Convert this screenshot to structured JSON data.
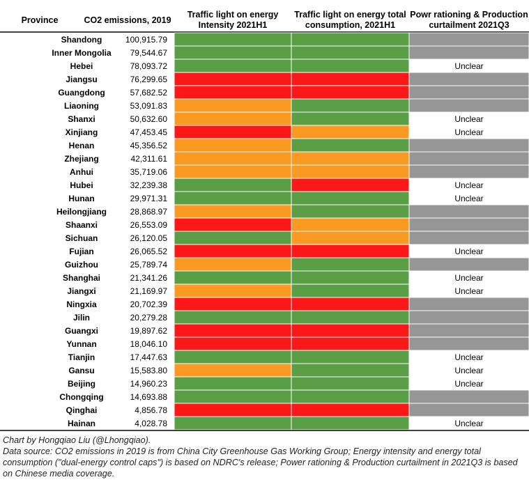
{
  "chart_data": {
    "type": "table",
    "columns": [
      "Province",
      "CO2 emissions, 2019",
      "Traffic light on energy Intensity 2021H1",
      "Traffic light on energy total consumption, 2021H1",
      "Powr rationing & Production curtailment 2021Q3"
    ],
    "header_lines": [
      [
        "Province"
      ],
      [
        "CO2 emissions, 2019"
      ],
      [
        "Traffic light on energy",
        "Intensity 2021H1"
      ],
      [
        "Traffic light on energy total",
        "consumption, 2021H1"
      ],
      [
        "Powr rationing & Production",
        "curtailment 2021Q3"
      ]
    ],
    "colors": {
      "green": "#5a9e46",
      "orange": "#fb9a22",
      "red": "#fc1818",
      "gray": "#969696",
      "white": "#ffffff"
    },
    "rows": [
      {
        "province": "Shandong",
        "co2": "100,915.79",
        "intensity": "green",
        "consumption": "green",
        "rationing": "gray",
        "rationing_text": ""
      },
      {
        "province": "Inner Mongolia",
        "co2": "79,544.67",
        "intensity": "green",
        "consumption": "green",
        "rationing": "gray",
        "rationing_text": ""
      },
      {
        "province": "Hebei",
        "co2": "78,093.72",
        "intensity": "green",
        "consumption": "green",
        "rationing": "white",
        "rationing_text": "Unclear"
      },
      {
        "province": "Jiangsu",
        "co2": "76,299.65",
        "intensity": "red",
        "consumption": "red",
        "rationing": "gray",
        "rationing_text": ""
      },
      {
        "province": "Guangdong",
        "co2": "57,682.52",
        "intensity": "red",
        "consumption": "red",
        "rationing": "gray",
        "rationing_text": ""
      },
      {
        "province": "Liaoning",
        "co2": "53,091.83",
        "intensity": "orange",
        "consumption": "green",
        "rationing": "gray",
        "rationing_text": ""
      },
      {
        "province": "Shanxi",
        "co2": "50,632.60",
        "intensity": "orange",
        "consumption": "green",
        "rationing": "white",
        "rationing_text": "Unclear"
      },
      {
        "province": "Xinjiang",
        "co2": "47,453.45",
        "intensity": "red",
        "consumption": "orange",
        "rationing": "white",
        "rationing_text": "Unclear"
      },
      {
        "province": "Henan",
        "co2": "45,356.52",
        "intensity": "orange",
        "consumption": "green",
        "rationing": "gray",
        "rationing_text": ""
      },
      {
        "province": "Zhejiang",
        "co2": "42,311.61",
        "intensity": "orange",
        "consumption": "orange",
        "rationing": "gray",
        "rationing_text": ""
      },
      {
        "province": "Anhui",
        "co2": "35,719.06",
        "intensity": "orange",
        "consumption": "orange",
        "rationing": "gray",
        "rationing_text": ""
      },
      {
        "province": "Hubei",
        "co2": "32,239.38",
        "intensity": "green",
        "consumption": "red",
        "rationing": "white",
        "rationing_text": "Unclear"
      },
      {
        "province": "Hunan",
        "co2": "29,971.31",
        "intensity": "green",
        "consumption": "green",
        "rationing": "white",
        "rationing_text": "Unclear"
      },
      {
        "province": "Heilongjiang",
        "co2": "28,868.97",
        "intensity": "orange",
        "consumption": "green",
        "rationing": "gray",
        "rationing_text": ""
      },
      {
        "province": "Shaanxi",
        "co2": "26,553.09",
        "intensity": "red",
        "consumption": "orange",
        "rationing": "gray",
        "rationing_text": ""
      },
      {
        "province": "Sichuan",
        "co2": "26,120.05",
        "intensity": "green",
        "consumption": "orange",
        "rationing": "gray",
        "rationing_text": ""
      },
      {
        "province": "Fujian",
        "co2": "26,065.52",
        "intensity": "red",
        "consumption": "red",
        "rationing": "white",
        "rationing_text": "Unclear"
      },
      {
        "province": "Guizhou",
        "co2": "25,789.74",
        "intensity": "orange",
        "consumption": "green",
        "rationing": "gray",
        "rationing_text": ""
      },
      {
        "province": "Shanghai",
        "co2": "21,341.26",
        "intensity": "green",
        "consumption": "green",
        "rationing": "white",
        "rationing_text": "Unclear"
      },
      {
        "province": "Jiangxi",
        "co2": "21,169.97",
        "intensity": "orange",
        "consumption": "green",
        "rationing": "white",
        "rationing_text": "Unclear"
      },
      {
        "province": "Ningxia",
        "co2": "20,702.39",
        "intensity": "red",
        "consumption": "red",
        "rationing": "gray",
        "rationing_text": ""
      },
      {
        "province": "Jilin",
        "co2": "20,279.28",
        "intensity": "green",
        "consumption": "green",
        "rationing": "gray",
        "rationing_text": ""
      },
      {
        "province": "Guangxi",
        "co2": "19,897.62",
        "intensity": "red",
        "consumption": "red",
        "rationing": "gray",
        "rationing_text": ""
      },
      {
        "province": "Yunnan",
        "co2": "18,046.10",
        "intensity": "red",
        "consumption": "red",
        "rationing": "gray",
        "rationing_text": ""
      },
      {
        "province": "Tianjin",
        "co2": "17,447.63",
        "intensity": "green",
        "consumption": "green",
        "rationing": "white",
        "rationing_text": "Unclear"
      },
      {
        "province": "Gansu",
        "co2": "15,583.80",
        "intensity": "orange",
        "consumption": "green",
        "rationing": "white",
        "rationing_text": "Unclear"
      },
      {
        "province": "Beijing",
        "co2": "14,960.23",
        "intensity": "green",
        "consumption": "green",
        "rationing": "white",
        "rationing_text": "Unclear"
      },
      {
        "province": "Chongqing",
        "co2": "14,693.88",
        "intensity": "green",
        "consumption": "green",
        "rationing": "gray",
        "rationing_text": ""
      },
      {
        "province": "Qinghai",
        "co2": "4,856.78",
        "intensity": "red",
        "consumption": "red",
        "rationing": "gray",
        "rationing_text": ""
      },
      {
        "province": "Hainan",
        "co2": "4,028.78",
        "intensity": "green",
        "consumption": "green",
        "rationing": "white",
        "rationing_text": "Unclear"
      }
    ]
  },
  "notes": {
    "credit": "Chart by Hongqiao Liu (@Lhongqiao).",
    "source": "Data source: CO2 emissions in 2019 is from China City Greenhouse Gas Working Group; Energy intensity and energy total consumption (\"dual-energy control caps\") is based on NDRC's release; Power rationing & Production curtailment in 2021Q3 is based on Chinese media coverage."
  }
}
